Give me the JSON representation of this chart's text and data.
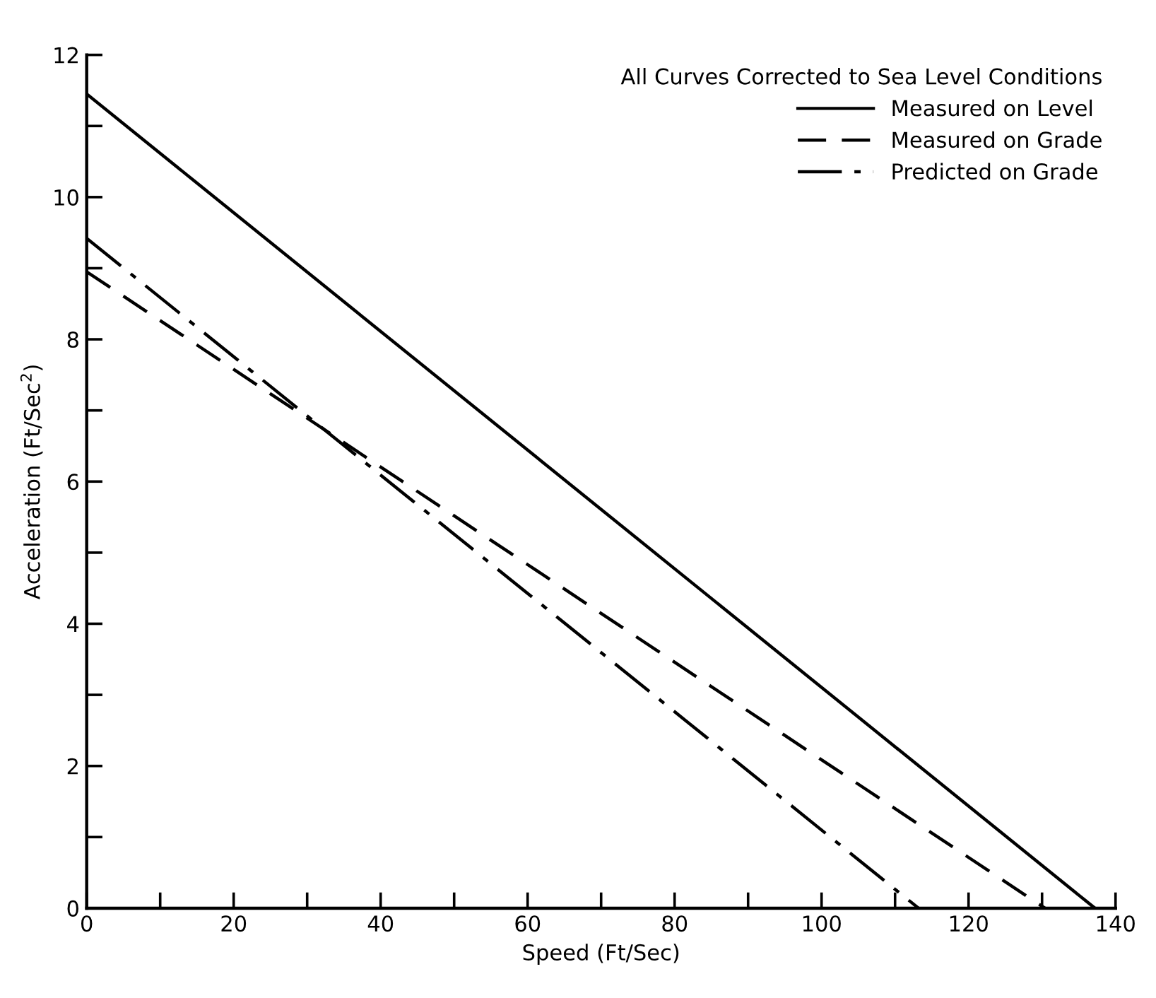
{
  "chart_data": {
    "type": "line",
    "xlabel": "Speed (Ft/Sec)",
    "ylabel": "Acceleration (Ft/Sec$^{2}$)",
    "legend_title": "All Curves Corrected to Sea Level Conditions",
    "legend": "top right",
    "grid": false,
    "marker": "none",
    "xlim": [
      0,
      140
    ],
    "ylim": [
      0,
      12
    ],
    "xticks": [
      0,
      {
        "value": 10,
        "label": null
      },
      20,
      {
        "value": 30,
        "label": null
      },
      40,
      {
        "value": 50,
        "label": null
      },
      60,
      {
        "value": 70,
        "label": null
      },
      80,
      {
        "value": 90,
        "label": null
      },
      100,
      {
        "value": 110,
        "label": null
      },
      120,
      {
        "value": 130,
        "label": null
      },
      140
    ],
    "yticks": [
      0,
      {
        "value": 1,
        "label": null
      },
      2,
      {
        "value": 3,
        "label": null
      },
      4,
      {
        "value": 5,
        "label": null
      },
      6,
      {
        "value": 7,
        "label": null
      },
      8,
      {
        "value": 9,
        "label": null
      },
      10,
      {
        "value": 11,
        "label": null
      },
      12
    ],
    "series": [
      {
        "name": "Measured on Level",
        "color": "#000000",
        "line_style": "solid",
        "x": [
          0,
          137.2
        ],
        "values": [
          11.45,
          0
        ]
      },
      {
        "name": "Measured on Grade",
        "color": "#000000",
        "line_style": "dashed",
        "x": [
          0,
          130.4
        ],
        "values": [
          8.95,
          0
        ]
      },
      {
        "name": "Predicted on Grade",
        "color": "#000000",
        "line_style": "dashdot",
        "x": [
          0,
          113.2
        ],
        "values": [
          9.42,
          0
        ]
      }
    ]
  }
}
